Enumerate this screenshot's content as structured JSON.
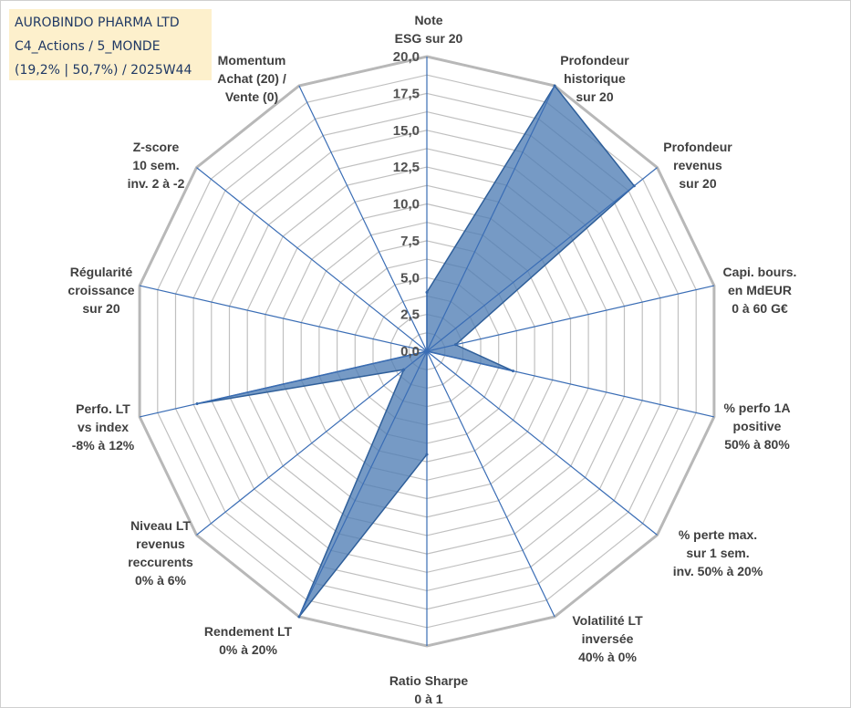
{
  "title_box": {
    "line1": "AUROBINDO PHARMA LTD",
    "line2": "C4_Actions / 5_MONDE",
    "line3": "(19,2% | 50,7%) / 2025W44"
  },
  "chart_data": {
    "type": "radar",
    "axis_range": [
      0,
      20
    ],
    "tick_labels": [
      "0,0",
      "2,5",
      "5,0",
      "7,5",
      "10,0",
      "12,5",
      "15,0",
      "17,5",
      "20,0"
    ],
    "grid": true,
    "categories": [
      [
        "Note",
        "ESG sur 20"
      ],
      [
        "Profondeur",
        "historique",
        "sur 20"
      ],
      [
        "Profondeur",
        "revenus",
        "sur 20"
      ],
      [
        "Capi. bours.",
        "en MdEUR",
        "0 à 60 G€"
      ],
      [
        "% perfo 1A",
        "positive",
        "50% à 80%"
      ],
      [
        "% perte max.",
        "sur 1 sem.",
        "inv. 50% à 20%"
      ],
      [
        "Volatilité LT",
        "inversée",
        "40% à 0%"
      ],
      [
        "Ratio Sharpe",
        "0 à 1"
      ],
      [
        "Rendement LT",
        "0% à 20%"
      ],
      [
        "Niveau LT",
        "revenus",
        "reccurents",
        "0% à 6%"
      ],
      [
        "Perfo. LT",
        "vs index",
        "-8% à 12%"
      ],
      [
        "Régularité",
        "croissance",
        "sur 20"
      ],
      [
        "Z-score",
        "10 sem.",
        "inv. 2 à -2"
      ],
      [
        "Momentum",
        "Achat (20) /",
        "Vente (0)"
      ]
    ],
    "series": [
      {
        "values": [
          4,
          20,
          18,
          2,
          6,
          0,
          0,
          7,
          20,
          2,
          16,
          0,
          0,
          0
        ]
      }
    ],
    "colors": {
      "fill": "#4f7db5",
      "fill_opacity": 0.78,
      "stroke": "#2f5f9a",
      "grid": "#c0c0c0",
      "outer": "#b8b8b8",
      "spoke": "#3a6db5"
    }
  }
}
